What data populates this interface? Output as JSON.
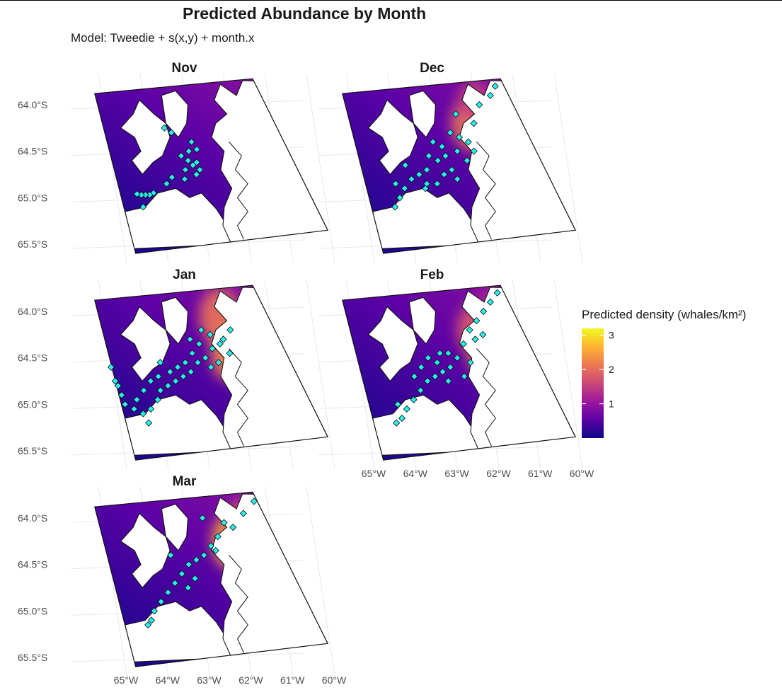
{
  "chart_data": {
    "type": "heatmap",
    "title": "Predicted Abundance by Month",
    "subtitle": "Model: Tweedie + s(x,y) + month.x",
    "xlabel": "",
    "ylabel": "",
    "x_ticks": [
      "65°W",
      "64°W",
      "63°W",
      "62°W",
      "61°W",
      "60°W"
    ],
    "y_ticks": [
      "64.0°S",
      "64.5°S",
      "65.0°S",
      "65.5°S"
    ],
    "xlim": [
      -65.5,
      -59.8
    ],
    "ylim": [
      -65.6,
      -63.75
    ],
    "grid": true,
    "legend": {
      "title": "Predicted density (whales/km²)",
      "position": "right",
      "ticks": [
        1,
        2,
        3
      ],
      "range": [
        0,
        3.2
      ],
      "colors": [
        "#0d0887",
        "#5c01a6",
        "#9c179e",
        "#cc4778",
        "#ed7953",
        "#fdb42f",
        "#f0f921"
      ]
    },
    "panels": [
      {
        "month": "Nov",
        "hotspots": [],
        "points": [
          [
            -63.6,
            -64.25
          ],
          [
            -63.45,
            -64.3
          ],
          [
            -63.0,
            -64.4
          ],
          [
            -62.9,
            -64.48
          ],
          [
            -63.1,
            -64.5
          ],
          [
            -63.3,
            -64.55
          ],
          [
            -63.15,
            -64.6
          ],
          [
            -63.05,
            -64.65
          ],
          [
            -62.95,
            -64.62
          ],
          [
            -63.25,
            -64.7
          ],
          [
            -63.0,
            -64.75
          ],
          [
            -62.9,
            -64.7
          ],
          [
            -63.3,
            -64.8
          ],
          [
            -63.6,
            -64.78
          ],
          [
            -63.75,
            -64.85
          ],
          [
            -64.1,
            -64.95
          ],
          [
            -64.2,
            -64.97
          ],
          [
            -64.3,
            -64.97
          ],
          [
            -64.4,
            -64.97
          ],
          [
            -64.5,
            -64.96
          ],
          [
            -64.4,
            -65.1
          ]
        ]
      },
      {
        "month": "Dec",
        "hotspots": [
          [
            -62.1,
            -64.2,
            0.55,
            0.3,
            2.0
          ],
          [
            -61.7,
            -64.35,
            0.3,
            0.3,
            1.8
          ],
          [
            -62.0,
            -63.95,
            0.4,
            0.2,
            1.5
          ]
        ],
        "points": [
          [
            -61.45,
            -63.8
          ],
          [
            -61.6,
            -63.9
          ],
          [
            -61.9,
            -64.0
          ],
          [
            -62.1,
            -64.2
          ],
          [
            -62.5,
            -64.1
          ],
          [
            -62.7,
            -64.3
          ],
          [
            -62.3,
            -64.4
          ],
          [
            -62.6,
            -64.5
          ],
          [
            -62.9,
            -64.55
          ],
          [
            -63.1,
            -64.6
          ],
          [
            -63.3,
            -64.55
          ],
          [
            -62.4,
            -64.6
          ],
          [
            -62.2,
            -64.5
          ],
          [
            -62.8,
            -64.7
          ],
          [
            -63.0,
            -64.75
          ],
          [
            -63.4,
            -64.7
          ],
          [
            -63.6,
            -64.75
          ],
          [
            -63.8,
            -64.8
          ],
          [
            -64.0,
            -64.9
          ],
          [
            -64.15,
            -65.0
          ],
          [
            -63.5,
            -64.9
          ],
          [
            -63.2,
            -64.85
          ],
          [
            -62.7,
            -64.8
          ],
          [
            -63.9,
            -64.65
          ],
          [
            -64.2,
            -64.85
          ],
          [
            -64.3,
            -65.1
          ],
          [
            -62.5,
            -64.35
          ],
          [
            -62.95,
            -64.45
          ],
          [
            -63.15,
            -64.4
          ],
          [
            -63.45,
            -64.85
          ]
        ]
      },
      {
        "month": "Jan",
        "hotspots": [
          [
            -61.95,
            -64.3,
            0.55,
            0.3,
            3.0
          ],
          [
            -62.2,
            -64.05,
            0.5,
            0.3,
            2.0
          ],
          [
            -62.1,
            -64.5,
            0.45,
            0.25,
            2.2
          ]
        ],
        "points": [
          [
            -65.0,
            -64.6
          ],
          [
            -64.95,
            -64.75
          ],
          [
            -64.85,
            -64.9
          ],
          [
            -64.8,
            -65.0
          ],
          [
            -64.6,
            -65.05
          ],
          [
            -64.4,
            -65.1
          ],
          [
            -64.3,
            -65.2
          ],
          [
            -64.2,
            -65.05
          ],
          [
            -64.0,
            -64.95
          ],
          [
            -63.9,
            -64.85
          ],
          [
            -63.7,
            -64.8
          ],
          [
            -63.5,
            -64.75
          ],
          [
            -63.3,
            -64.7
          ],
          [
            -63.1,
            -64.65
          ],
          [
            -62.9,
            -64.55
          ],
          [
            -62.7,
            -64.5
          ],
          [
            -62.5,
            -64.4
          ],
          [
            -62.3,
            -64.35
          ],
          [
            -62.2,
            -64.3
          ],
          [
            -62.5,
            -64.25
          ],
          [
            -62.8,
            -64.35
          ],
          [
            -63.0,
            -64.45
          ],
          [
            -63.2,
            -64.55
          ],
          [
            -63.4,
            -64.6
          ],
          [
            -62.6,
            -64.6
          ],
          [
            -62.4,
            -64.55
          ],
          [
            -63.6,
            -64.65
          ],
          [
            -62.1,
            -64.45
          ],
          [
            -62.0,
            -64.2
          ],
          [
            -63.9,
            -64.7
          ],
          [
            -64.3,
            -64.85
          ],
          [
            -64.5,
            -64.95
          ],
          [
            -63.0,
            -64.3
          ],
          [
            -62.7,
            -64.2
          ],
          [
            -64.9,
            -64.8
          ],
          [
            -63.8,
            -64.55
          ],
          [
            -64.1,
            -64.75
          ]
        ]
      },
      {
        "month": "Feb",
        "hotspots": [
          [
            -61.9,
            -64.45,
            0.4,
            0.25,
            2.6
          ],
          [
            -62.0,
            -64.2,
            0.5,
            0.3,
            1.8
          ],
          [
            -61.6,
            -63.95,
            0.4,
            0.2,
            1.2
          ]
        ],
        "points": [
          [
            -61.4,
            -63.8
          ],
          [
            -61.6,
            -63.9
          ],
          [
            -61.8,
            -64.0
          ],
          [
            -62.0,
            -64.1
          ],
          [
            -62.2,
            -64.2
          ],
          [
            -62.4,
            -64.35
          ],
          [
            -62.6,
            -64.5
          ],
          [
            -62.8,
            -64.6
          ],
          [
            -63.0,
            -64.65
          ],
          [
            -63.2,
            -64.7
          ],
          [
            -63.4,
            -64.75
          ],
          [
            -63.6,
            -64.85
          ],
          [
            -63.8,
            -64.95
          ],
          [
            -64.0,
            -65.05
          ],
          [
            -64.15,
            -65.15
          ],
          [
            -64.3,
            -65.2
          ],
          [
            -63.0,
            -64.45
          ],
          [
            -62.8,
            -64.45
          ],
          [
            -63.3,
            -64.5
          ],
          [
            -62.9,
            -64.75
          ],
          [
            -63.5,
            -64.6
          ],
          [
            -62.5,
            -64.7
          ],
          [
            -62.3,
            -64.55
          ],
          [
            -64.2,
            -65.0
          ],
          [
            -63.7,
            -64.7
          ],
          [
            -62.1,
            -64.3
          ],
          [
            -61.9,
            -64.25
          ],
          [
            -63.1,
            -64.55
          ]
        ]
      },
      {
        "month": "Mar",
        "hotspots": [
          [
            -62.0,
            -64.25,
            0.45,
            0.3,
            2.5
          ],
          [
            -61.7,
            -64.05,
            0.3,
            0.25,
            1.8
          ]
        ],
        "points": [
          [
            -61.3,
            -63.82
          ],
          [
            -61.6,
            -63.95
          ],
          [
            -61.9,
            -64.1
          ],
          [
            -62.1,
            -64.05
          ],
          [
            -62.3,
            -64.2
          ],
          [
            -62.5,
            -64.3
          ],
          [
            -62.7,
            -64.4
          ],
          [
            -62.9,
            -64.45
          ],
          [
            -63.1,
            -64.5
          ],
          [
            -63.3,
            -64.6
          ],
          [
            -63.5,
            -64.7
          ],
          [
            -63.7,
            -64.8
          ],
          [
            -63.9,
            -64.9
          ],
          [
            -64.1,
            -65.0
          ],
          [
            -64.2,
            -65.1
          ],
          [
            -64.3,
            -65.15
          ],
          [
            -62.6,
            -64.0
          ],
          [
            -62.4,
            -64.35
          ],
          [
            -63.0,
            -64.65
          ],
          [
            -63.2,
            -64.75
          ],
          [
            -63.5,
            -64.4
          ]
        ]
      }
    ]
  }
}
